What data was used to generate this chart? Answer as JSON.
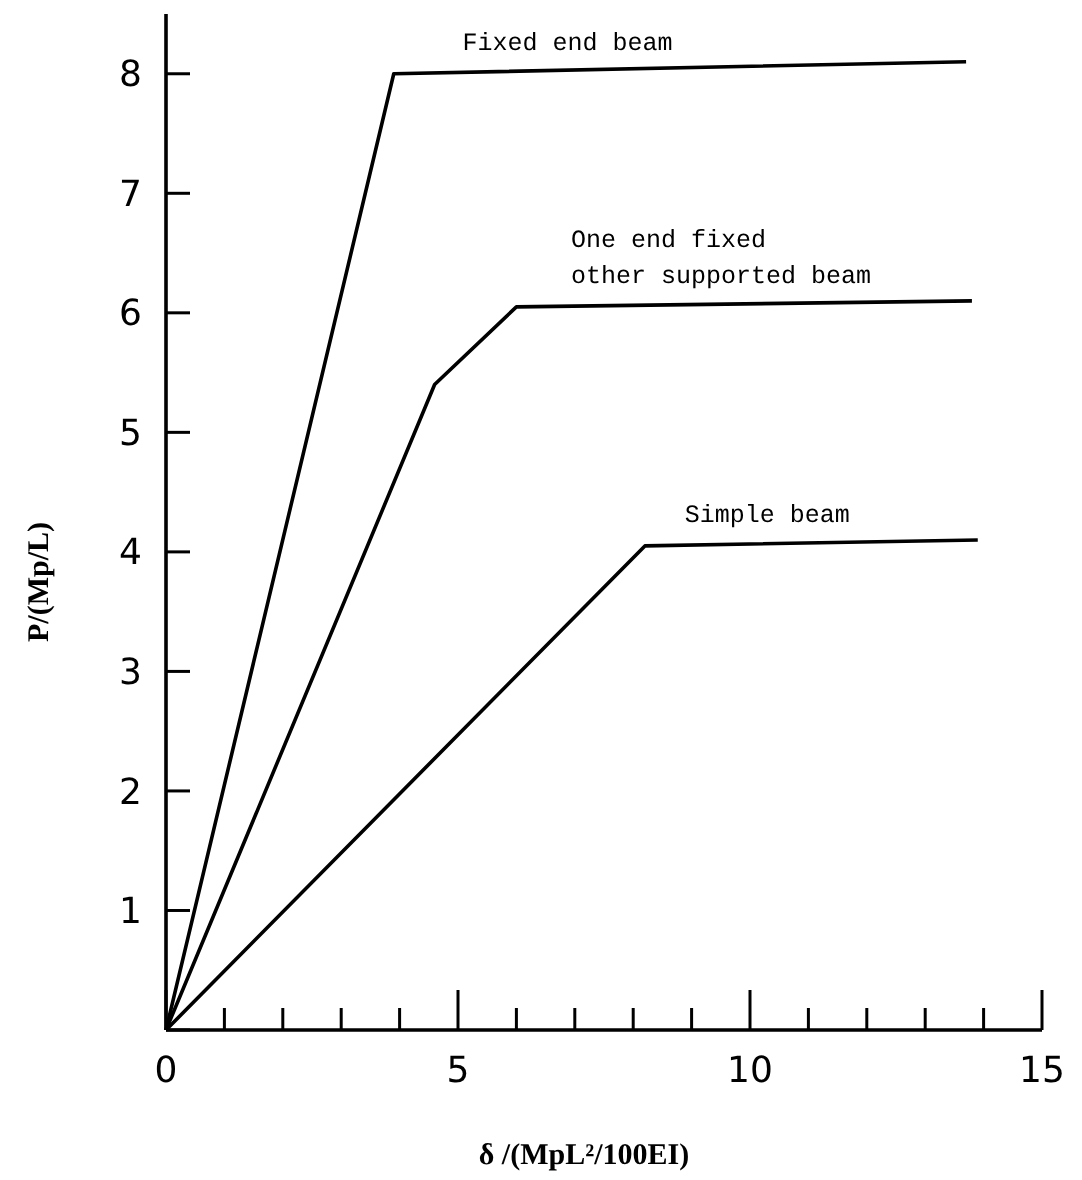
{
  "chart_data": {
    "type": "line",
    "xlabel": "δ /(MpL²/100EI)",
    "ylabel": "P/(Mp/L)",
    "xlim": [
      0,
      15
    ],
    "ylim": [
      0,
      8.5
    ],
    "xticks": [
      0,
      {
        "value": 1,
        "label": null
      },
      {
        "value": 2,
        "label": null
      },
      {
        "value": 3,
        "label": null
      },
      {
        "value": 4,
        "label": null
      },
      5,
      {
        "value": 6,
        "label": null
      },
      {
        "value": 7,
        "label": null
      },
      {
        "value": 8,
        "label": null
      },
      {
        "value": 9,
        "label": null
      },
      10,
      {
        "value": 11,
        "label": null
      },
      {
        "value": 12,
        "label": null
      },
      {
        "value": 13,
        "label": null
      },
      {
        "value": 14,
        "label": null
      },
      15
    ],
    "yticks": [
      {
        "value": 0,
        "label": null
      },
      1,
      2,
      3,
      4,
      5,
      6,
      7,
      8
    ],
    "series": [
      {
        "name": "Fixed end beam",
        "color": "#000000",
        "x": [
          0,
          3.9,
          13.7
        ],
        "values": [
          0,
          8.0,
          8.1
        ]
      },
      {
        "name": "One end fixed\nother supported beam",
        "color": "#000000",
        "x": [
          0,
          4.6,
          6.0,
          13.8
        ],
        "values": [
          0,
          5.4,
          6.05,
          6.1
        ]
      },
      {
        "name": "Simple beam",
        "color": "#000000",
        "x": [
          0,
          8.2,
          13.9
        ],
        "values": [
          0,
          4.05,
          4.1
        ]
      }
    ],
    "legend": false,
    "grid": false,
    "marker": "none",
    "line_style": "solid"
  }
}
